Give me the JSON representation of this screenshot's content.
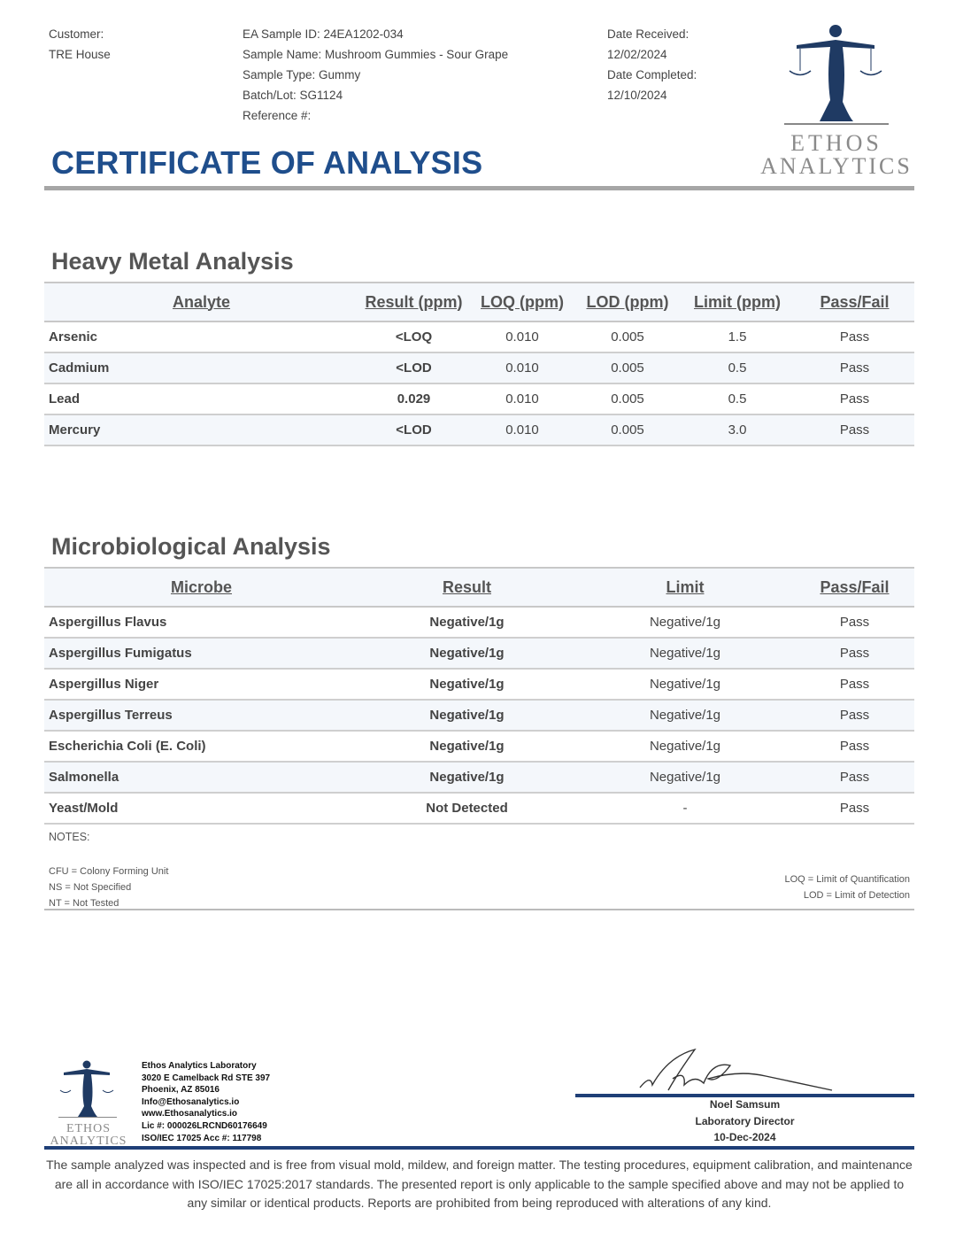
{
  "header": {
    "customer_label": "Customer:",
    "customer": "TRE House",
    "sample_id": "EA Sample ID: 24EA1202-034",
    "sample_name": "Sample Name: Mushroom Gummies - Sour Grape",
    "sample_type": "Sample Type: Gummy",
    "batch": "Batch/Lot: SG1124",
    "reference": "Reference #:",
    "date_received_label": "Date Received:",
    "date_received": "12/02/2024",
    "date_completed_label": "Date Completed:",
    "date_completed": "12/10/2024",
    "title": "CERTIFICATE OF ANALYSIS",
    "logo_line1": "ETHOS",
    "logo_line2": "ANALYTICS"
  },
  "colors": {
    "brand_blue": "#1f4e8c",
    "navy": "#1f3f77",
    "rule_gray": "#a6a6a6"
  },
  "heavy_metal": {
    "title": "Heavy Metal Analysis",
    "columns": [
      "Analyte",
      "Result (ppm)",
      "LOQ (ppm)",
      "LOD (ppm)",
      "Limit (ppm)",
      "Pass/Fail"
    ],
    "rows": [
      [
        "Arsenic",
        "<LOQ",
        "0.010",
        "0.005",
        "1.5",
        "Pass"
      ],
      [
        "Cadmium",
        "<LOD",
        "0.010",
        "0.005",
        "0.5",
        "Pass"
      ],
      [
        "Lead",
        "0.029",
        "0.010",
        "0.005",
        "0.5",
        "Pass"
      ],
      [
        "Mercury",
        "<LOD",
        "0.010",
        "0.005",
        "3.0",
        "Pass"
      ]
    ]
  },
  "microbio": {
    "title": "Microbiological Analysis",
    "columns": [
      "Microbe",
      "Result",
      "Limit",
      "Pass/Fail"
    ],
    "rows": [
      [
        "Aspergillus Flavus",
        "Negative/1g",
        "Negative/1g",
        "Pass"
      ],
      [
        "Aspergillus Fumigatus",
        "Negative/1g",
        "Negative/1g",
        "Pass"
      ],
      [
        "Aspergillus Niger",
        "Negative/1g",
        "Negative/1g",
        "Pass"
      ],
      [
        "Aspergillus Terreus",
        "Negative/1g",
        "Negative/1g",
        "Pass"
      ],
      [
        "Escherichia Coli (E. Coli)",
        "Negative/1g",
        "Negative/1g",
        "Pass"
      ],
      [
        "Salmonella",
        "Negative/1g",
        "Negative/1g",
        "Pass"
      ],
      [
        "Yeast/Mold",
        "Not Detected",
        "-",
        "Pass"
      ]
    ]
  },
  "notes": {
    "label": "NOTES:",
    "left": [
      "CFU = Colony Forming Unit",
      "NS = Not Specified",
      "NT = Not Tested"
    ],
    "right": [
      "LOQ = Limit of Quantification",
      "LOD = Limit of Detection"
    ]
  },
  "footer": {
    "lab": [
      "Ethos Analytics Laboratory",
      "3020 E Camelback Rd STE 397",
      "Phoenix, AZ 85016",
      "Info@Ethosanalytics.io",
      "www.Ethosanalytics.io",
      "Lic #: 000026LRCND60176649",
      "ISO/IEC 17025 Acc #: 117798"
    ],
    "logo_line1": "ETHOS",
    "logo_line2": "ANALYTICS",
    "signer": "Noel Samsum",
    "signer_title": "Laboratory Director",
    "sign_date": "10-Dec-2024",
    "disclaimer": "The sample analyzed was inspected and is free from visual mold, mildew, and foreign matter. The testing procedures, equipment calibration, and maintenance are all in accordance with ISO/IEC 17025:2017 standards. The presented report is only applicable to the sample specified above and may not be applied to any similar or identical products. Reports are prohibited from being reproduced with alterations of any kind."
  }
}
